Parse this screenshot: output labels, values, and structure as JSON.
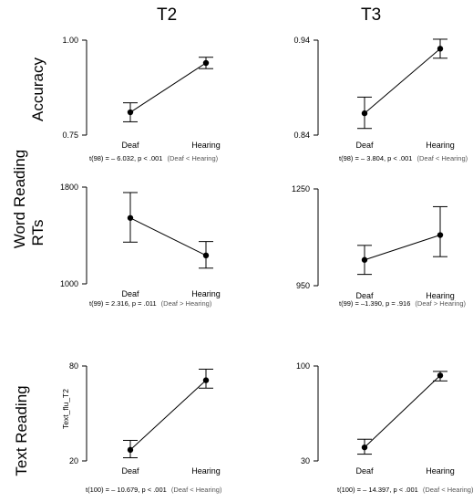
{
  "columns": [
    "T2",
    "T3"
  ],
  "rows": {
    "word_reading": "Word Reading",
    "text_reading": "Text Reading",
    "accuracy": "Accuracy",
    "rts": "RTs"
  },
  "chart_data": [
    {
      "type": "line",
      "panel": "T2-accuracy",
      "categories": [
        "Deaf",
        "Hearing"
      ],
      "values": [
        0.81,
        0.94
      ],
      "error_low": [
        0.785,
        0.925
      ],
      "error_high": [
        0.835,
        0.955
      ],
      "ylim": [
        0.75,
        1.0
      ],
      "yticks": [
        "1.00",
        "0.75"
      ],
      "ylabel": "",
      "annotation_stat": "t(98) = – 6.032, p < .001",
      "annotation_dir": "(Deaf < Hearing)"
    },
    {
      "type": "line",
      "panel": "T3-accuracy",
      "categories": [
        "Deaf",
        "Hearing"
      ],
      "values": [
        0.863,
        0.931
      ],
      "error_low": [
        0.847,
        0.921
      ],
      "error_high": [
        0.88,
        0.941
      ],
      "ylim": [
        0.84,
        0.94
      ],
      "yticks": [
        "0.94",
        "0.84"
      ],
      "ylabel": "",
      "annotation_stat": "t(98) = – 3.804, p < .001",
      "annotation_dir": "(Deaf < Hearing)"
    },
    {
      "type": "line",
      "panel": "T2-rts",
      "categories": [
        "Deaf",
        "Hearing"
      ],
      "values": [
        1545,
        1235
      ],
      "error_low": [
        1345,
        1130
      ],
      "error_high": [
        1755,
        1350
      ],
      "ylim": [
        1000,
        1800
      ],
      "yticks": [
        "1800",
        "1000"
      ],
      "ylabel": "",
      "annotation_stat": "t(99) = 2.316, p = .011",
      "annotation_dir": "(Deaf > Hearing)"
    },
    {
      "type": "line",
      "panel": "T3-rts",
      "categories": [
        "Deaf",
        "Hearing"
      ],
      "values": [
        1030,
        1107
      ],
      "error_low": [
        985,
        1040
      ],
      "error_high": [
        1075,
        1195
      ],
      "ylim": [
        950,
        1250
      ],
      "yticks": [
        "1250",
        "950"
      ],
      "ylabel": "",
      "annotation_stat": "t(99) = –1.390, p = .916",
      "annotation_dir": "(Deaf > Hearing)"
    },
    {
      "type": "line",
      "panel": "T2-text",
      "categories": [
        "Deaf",
        "Hearing"
      ],
      "values": [
        27,
        71
      ],
      "error_low": [
        22,
        66
      ],
      "error_high": [
        33,
        78
      ],
      "ylim": [
        20,
        80
      ],
      "yticks": [
        "80",
        "20"
      ],
      "ylabel": "Text_flu_T2",
      "annotation_stat": "t(100) = – 10.679, p < .001",
      "annotation_dir": "(Deaf < Hearing)"
    },
    {
      "type": "line",
      "panel": "T3-text",
      "categories": [
        "Deaf",
        "Hearing"
      ],
      "values": [
        40,
        93
      ],
      "error_low": [
        35,
        89
      ],
      "error_high": [
        46,
        96
      ],
      "ylim": [
        30,
        100
      ],
      "yticks": [
        "100",
        "30"
      ],
      "ylabel": "",
      "annotation_stat": "t(100) = – 14.397, p < .001",
      "annotation_dir": "(Deaf < Hearing)"
    }
  ],
  "colors": {
    "ink": "#000000",
    "annotation_dir": "#555555"
  }
}
